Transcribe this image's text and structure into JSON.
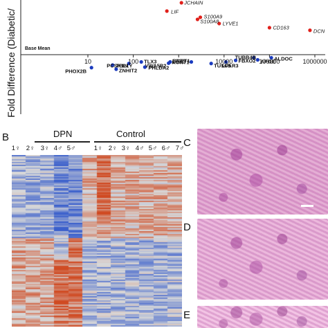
{
  "figure": {
    "panel_b": "B",
    "panel_c": "C",
    "panel_d": "D",
    "panel_e": "E"
  },
  "chart_data": [
    {
      "type": "scatter",
      "ylabel": "Fold Difference (Diabetic/",
      "xlabel": "",
      "x_scale": "log",
      "base_mean_label": "Base Mean",
      "x_ticks": [
        "10",
        "100",
        "1000",
        "10000",
        "100000",
        "1000000"
      ],
      "xlim": [
        10,
        1000000
      ],
      "series": [
        {
          "color": "#e0201b",
          "points": [
            {
              "label": "JCHAIN",
              "x": 1150,
              "y": 5.0
            },
            {
              "label": "LIF",
              "x": 550,
              "y": 4.2
            },
            {
              "label": "S100A9",
              "x": 3000,
              "y": 3.6
            },
            {
              "label": "S100A8",
              "x": 2600,
              "y": 3.4
            },
            {
              "label": "LYVE1",
              "x": 7800,
              "y": 3.0
            },
            {
              "label": "CD163",
              "x": 100000,
              "y": 2.6
            },
            {
              "label": "DCN",
              "x": 780000,
              "y": 2.35
            }
          ]
        },
        {
          "color": "#1a3bbf",
          "points": [
            {
              "label": "TUBB4B",
              "x": 45000,
              "y": -0.3
            },
            {
              "label": "ALDOC",
              "x": 110000,
              "y": -0.3
            },
            {
              "label": "APOE",
              "x": 55000,
              "y": -0.5
            },
            {
              "label": "FBXO2",
              "x": 18000,
              "y": -0.55
            },
            {
              "label": "LPAR3",
              "x": 11000,
              "y": -0.7
            },
            {
              "label": "KCNT1",
              "x": 1900,
              "y": -0.7
            },
            {
              "label": "SCRT1",
              "x": 650,
              "y": -0.7
            },
            {
              "label": "TLX3",
              "x": 150,
              "y": -0.7
            },
            {
              "label": "VWA5B2",
              "x": 600,
              "y": -0.82
            },
            {
              "label": "TUSC5",
              "x": 5200,
              "y": -0.85
            },
            {
              "label": "PCSK1N",
              "x": 80,
              "y": -0.85
            },
            {
              "label": "TBL1Y",
              "x": 35,
              "y": -1.0
            },
            {
              "label": "PHLDA2",
              "x": 180,
              "y": -1.2
            },
            {
              "label": "PHOX2B",
              "x": 12,
              "y": -1.25
            },
            {
              "label": "ZNHIT2",
              "x": 42,
              "y": -1.4
            }
          ]
        }
      ]
    },
    {
      "type": "heatmap",
      "groups": [
        {
          "label": "DPN",
          "samples": [
            "1♀",
            "2♀",
            "3♀",
            "4♂",
            "5♂"
          ]
        },
        {
          "label": "Control",
          "samples": [
            "1♀",
            "2♀",
            "3♀",
            "4♂",
            "5♂",
            "6♂",
            "7♂"
          ]
        }
      ],
      "colors": {
        "low": "#3a5fcc",
        "mid": "#d8d8d8",
        "high": "#d04a22"
      }
    }
  ]
}
